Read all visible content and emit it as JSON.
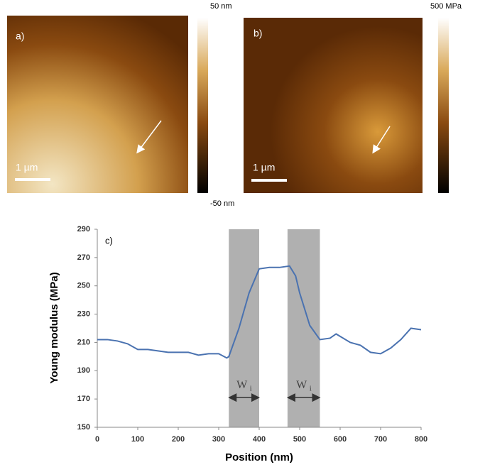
{
  "figure": {
    "panel_a": "a)",
    "panel_b": "b)",
    "scale_a": "1 µm",
    "scale_b": "1 µm",
    "bar_a_top": "50 nm",
    "bar_a_bottom": "-50 nm",
    "bar_b_top": "500 MPa"
  },
  "chart_data": {
    "type": "line",
    "panel": "c)",
    "x_label": "Position (nm)",
    "y_label": "Young modulus (MPa)",
    "x": [
      0,
      25,
      50,
      75,
      100,
      125,
      150,
      175,
      200,
      225,
      250,
      275,
      300,
      320,
      325,
      350,
      375,
      400,
      425,
      450,
      475,
      490,
      500,
      525,
      550,
      575,
      590,
      625,
      650,
      675,
      700,
      725,
      750,
      775,
      800
    ],
    "series": [
      {
        "color": "#4a72b0",
        "values": [
          212,
          212,
          211,
          209,
          205,
          205,
          204,
          203,
          203,
          203,
          201,
          202,
          202,
          199,
          200,
          220,
          245,
          262,
          263,
          263,
          264,
          257,
          245,
          222,
          212,
          213,
          216,
          210,
          208,
          203,
          202,
          206,
          212,
          220,
          219
        ]
      }
    ],
    "shaded_regions": [
      [
        325,
        400
      ],
      [
        470,
        550
      ]
    ],
    "shade_color": "#b0b0b0",
    "annotations": [
      {
        "text": "W",
        "sub": "i"
      },
      {
        "text": "W",
        "sub": "i"
      }
    ],
    "xlim": [
      0,
      800
    ],
    "xticks": [
      0,
      100,
      200,
      300,
      400,
      500,
      600,
      700,
      800
    ],
    "ylim": [
      150,
      290
    ],
    "yticks": [
      150,
      170,
      190,
      210,
      230,
      250,
      270,
      290
    ]
  }
}
